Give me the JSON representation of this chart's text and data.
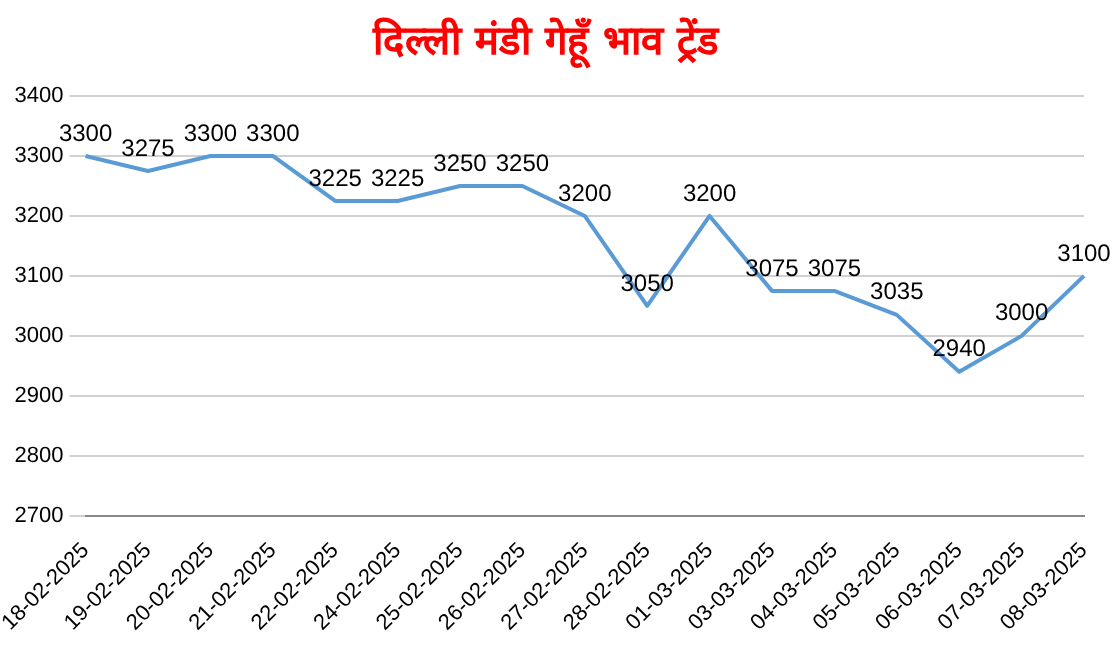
{
  "chart_data": {
    "type": "line",
    "title": "दिल्ली मंडी गेहूँ भाव ट्रेंड",
    "categories": [
      "18-02-2025",
      "19-02-2025",
      "20-02-2025",
      "21-02-2025",
      "22-02-2025",
      "24-02-2025",
      "25-02-2025",
      "26-02-2025",
      "27-02-2025",
      "28-02-2025",
      "01-03-2025",
      "03-03-2025",
      "04-03-2025",
      "05-03-2025",
      "06-03-2025",
      "07-03-2025",
      "08-03-2025"
    ],
    "series": [
      {
        "color": "#5b9bd5",
        "values": [
          3300,
          3275,
          3300,
          3300,
          3225,
          3225,
          3250,
          3250,
          3200,
          3050,
          3200,
          3075,
          3075,
          3035,
          2940,
          3000,
          3100
        ]
      }
    ],
    "ylim": [
      2700,
      3400
    ],
    "yticks": [
      2700,
      2800,
      2900,
      3000,
      3100,
      3200,
      3300,
      3400
    ],
    "grid": "y",
    "legend": false,
    "marker": "none",
    "line_style": "solid",
    "data_labels": true
  }
}
